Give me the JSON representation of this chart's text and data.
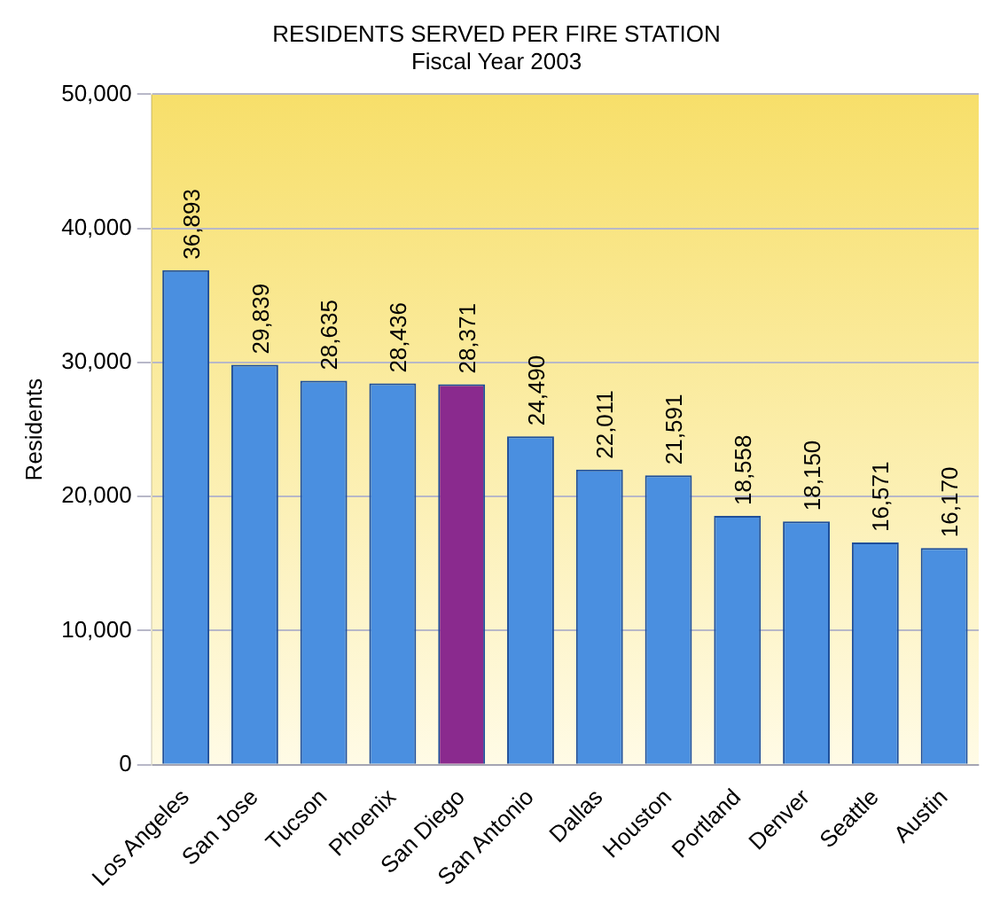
{
  "chart_data": {
    "type": "bar",
    "title": "RESIDENTS SERVED PER FIRE STATION",
    "subtitle": "Fiscal Year 2003",
    "ylabel": "Residents",
    "categories": [
      "Los Angeles",
      "San Jose",
      "Tucson",
      "Phoenix",
      "San Diego",
      "San Antonio",
      "Dallas",
      "Houston",
      "Portland",
      "Denver",
      "Seattle",
      "Austin"
    ],
    "values": [
      36893,
      29839,
      28635,
      28436,
      28371,
      24490,
      22011,
      21591,
      18558,
      18150,
      16571,
      16170
    ],
    "colors": [
      "#4a8fe0",
      "#4a8fe0",
      "#4a8fe0",
      "#4a8fe0",
      "#8a2a8e",
      "#4a8fe0",
      "#4a8fe0",
      "#4a8fe0",
      "#4a8fe0",
      "#4a8fe0",
      "#4a8fe0",
      "#4a8fe0"
    ],
    "ylim": [
      0,
      50000
    ],
    "yticks": [
      {
        "value": 0,
        "label": "0"
      },
      {
        "value": 10000,
        "label": "10,000"
      },
      {
        "value": 20000,
        "label": "20,000"
      },
      {
        "value": 30000,
        "label": "30,000"
      },
      {
        "value": 40000,
        "label": "40,000"
      },
      {
        "value": 50000,
        "label": "50,000"
      }
    ],
    "value_labels": [
      "36,893",
      "29,839",
      "28,635",
      "28,436",
      "28,371",
      "24,490",
      "22,011",
      "21,591",
      "18,558",
      "18,150",
      "16,571",
      "16,170"
    ],
    "grid": "y",
    "legend": false
  }
}
